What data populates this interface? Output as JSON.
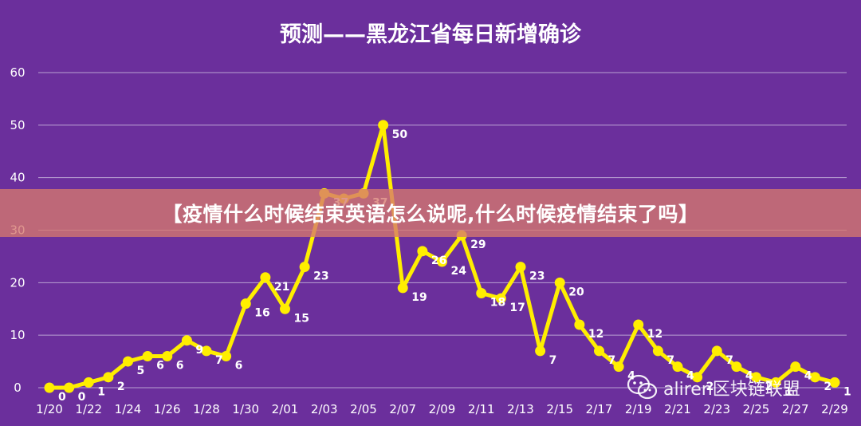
{
  "chart_data": {
    "type": "line",
    "title": "预测——黑龙江省每日新增确诊",
    "xlabel": "",
    "ylabel": "",
    "ylim": [
      0,
      60
    ],
    "yticks": [
      0,
      10,
      20,
      30,
      40,
      50,
      60
    ],
    "grid": true,
    "x": [
      "1/20",
      "1/21",
      "1/22",
      "1/23",
      "1/24",
      "1/25",
      "1/26",
      "1/27",
      "1/28",
      "1/29",
      "1/30",
      "1/31",
      "2/01",
      "2/02",
      "2/03",
      "2/04",
      "2/05",
      "2/06",
      "2/07",
      "2/08",
      "2/09",
      "2/10",
      "2/11",
      "2/12",
      "2/13",
      "2/14",
      "2/15",
      "2/16",
      "2/17",
      "2/18",
      "2/19",
      "2/20",
      "2/21",
      "2/22",
      "2/23",
      "2/24",
      "2/25",
      "2/26",
      "2/27",
      "2/28",
      "2/29"
    ],
    "xtick_labels": [
      "1/20",
      "1/22",
      "1/24",
      "1/26",
      "1/28",
      "1/30",
      "2/01",
      "2/03",
      "2/05",
      "2/07",
      "2/09",
      "2/11",
      "2/13",
      "2/15",
      "2/17",
      "2/19",
      "2/21",
      "2/23",
      "2/25",
      "2/27",
      "2/29"
    ],
    "series": [
      {
        "values": [
          0,
          0,
          1,
          2,
          5,
          6,
          6,
          9,
          7,
          6,
          16,
          21,
          15,
          23,
          37,
          36,
          37,
          50,
          19,
          26,
          24,
          29,
          18,
          17,
          23,
          7,
          20,
          12,
          7,
          4,
          12,
          7,
          4,
          2,
          7,
          4,
          2,
          1,
          4,
          2,
          1
        ],
        "labels": [
          "0",
          "0",
          "1",
          "2",
          "5",
          "6",
          "6",
          "9",
          "7",
          "6",
          "16",
          "21",
          "15",
          "23",
          "37",
          "",
          "37",
          "50",
          "19",
          "26",
          "24",
          "29",
          "18",
          "17",
          "23",
          "7",
          "20",
          "12",
          "7",
          "4",
          "12",
          "7",
          "4",
          "2",
          "7",
          "4",
          "2",
          "1",
          "4",
          "2",
          "1"
        ],
        "color": "#ffee00"
      }
    ]
  },
  "banner": {
    "text": "【疫情什么时候结束英语怎么说呢,什么时候疫情结束了吗】"
  },
  "watermark": {
    "text": "aliren区块链联盟",
    "icon": "wechat-icon"
  }
}
